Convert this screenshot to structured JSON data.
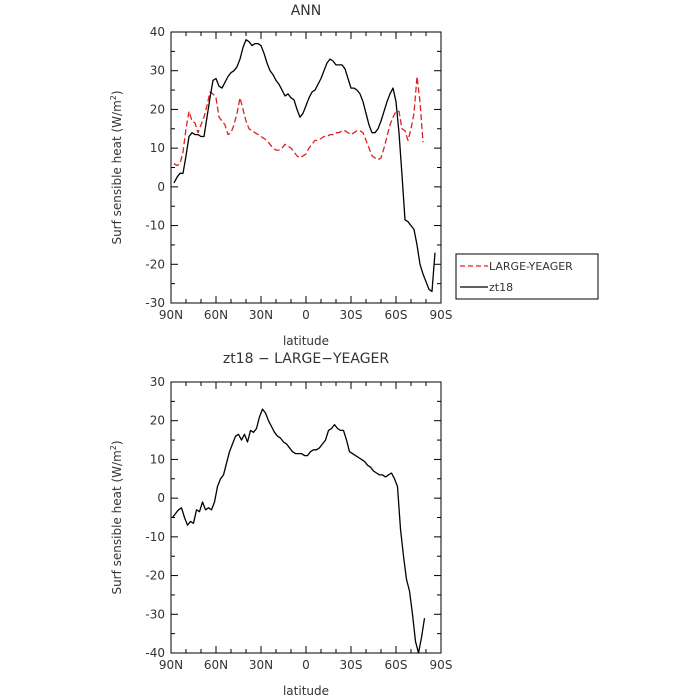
{
  "chart_data": [
    {
      "type": "line",
      "title": "ANN",
      "xlabel": "latitude",
      "ylabel": "Surf sensible heat (W/m",
      "ylabel_sup": "2",
      "ylabel_close": ")",
      "xlim": [
        90,
        -90
      ],
      "ylim": [
        -30,
        40
      ],
      "x_ticks": [
        90,
        60,
        30,
        0,
        -30,
        -60,
        -90
      ],
      "x_tick_labels": [
        "90N",
        "60N",
        "30N",
        "0",
        "30S",
        "60S",
        "90S"
      ],
      "y_ticks": [
        -30,
        -20,
        -10,
        0,
        10,
        20,
        30,
        40
      ],
      "y_tick_labels": [
        "-30",
        "-20",
        "-10",
        "0",
        "10",
        "20",
        "30",
        "40"
      ],
      "legend_position": "right",
      "series": [
        {
          "name": "LARGE-YEAGER",
          "color": "#e02020",
          "dash": "dashed",
          "x": [
            88,
            86,
            84,
            82,
            80,
            78,
            76,
            74,
            72,
            70,
            68,
            66,
            64,
            62,
            60,
            58,
            56,
            54,
            52,
            50,
            48,
            46,
            44,
            42,
            40,
            38,
            36,
            34,
            32,
            30,
            28,
            26,
            24,
            22,
            20,
            18,
            16,
            14,
            12,
            10,
            8,
            6,
            4,
            2,
            0,
            -2,
            -4,
            -6,
            -8,
            -10,
            -12,
            -14,
            -16,
            -18,
            -20,
            -22,
            -24,
            -26,
            -28,
            -30,
            -32,
            -34,
            -36,
            -38,
            -40,
            -42,
            -44,
            -46,
            -48,
            -50,
            -52,
            -54,
            -56,
            -58,
            -60,
            -62,
            -64,
            -66,
            -68,
            -70,
            -72,
            -74,
            -76,
            -78
          ],
          "y": [
            6,
            5.5,
            6,
            9,
            15,
            19.5,
            17,
            16.5,
            14,
            16,
            18,
            21,
            24.5,
            24,
            23,
            18,
            17,
            16,
            13.5,
            14,
            16,
            19,
            23,
            20,
            17,
            15,
            14.5,
            14,
            13.5,
            13,
            12.5,
            12,
            11,
            10,
            9.5,
            9.5,
            10,
            11,
            10.5,
            10,
            9,
            8,
            7.5,
            8,
            8.5,
            10,
            11,
            12,
            12,
            12.5,
            13,
            13,
            13.5,
            13.5,
            14,
            14,
            14.5,
            14.5,
            14,
            13.5,
            14,
            14.5,
            14.5,
            14,
            12,
            10,
            8,
            7.5,
            7,
            7.5,
            10,
            13,
            16,
            18,
            19.5,
            19.5,
            15,
            14.5,
            12,
            15,
            19,
            28.5,
            22,
            11.5
          ]
        },
        {
          "name": "zt18",
          "color": "#000000",
          "dash": "solid",
          "x": [
            88,
            86,
            84,
            82,
            80,
            78,
            76,
            74,
            72,
            70,
            68,
            66,
            64,
            62,
            60,
            58,
            56,
            54,
            52,
            50,
            48,
            46,
            44,
            42,
            40,
            38,
            36,
            34,
            32,
            30,
            28,
            26,
            24,
            22,
            20,
            18,
            16,
            14,
            12,
            10,
            8,
            6,
            4,
            2,
            0,
            -2,
            -4,
            -6,
            -8,
            -10,
            -12,
            -14,
            -16,
            -18,
            -20,
            -22,
            -24,
            -26,
            -28,
            -30,
            -32,
            -34,
            -36,
            -38,
            -40,
            -42,
            -44,
            -46,
            -48,
            -50,
            -52,
            -54,
            -56,
            -58,
            -60,
            -62,
            -64,
            -66,
            -68,
            -70,
            -72,
            -74,
            -76,
            -78,
            -80,
            -82,
            -84,
            -86
          ],
          "y": [
            1,
            2.5,
            3.5,
            3.5,
            8,
            13,
            14,
            13.5,
            13.5,
            13,
            13,
            18,
            23,
            27.5,
            28,
            26,
            25.5,
            27,
            28.5,
            29.5,
            30,
            31,
            33,
            36,
            38,
            37.5,
            36.5,
            37,
            37,
            36.5,
            34.5,
            32,
            30,
            29,
            27.5,
            26.5,
            25,
            23.5,
            24,
            23,
            22.5,
            20,
            18,
            19,
            21,
            23,
            24.5,
            25,
            26.5,
            28,
            30,
            32,
            33,
            32.5,
            31.5,
            31.5,
            31.5,
            30.5,
            28,
            25.5,
            25.5,
            25,
            24,
            22,
            19,
            16,
            14,
            14,
            15,
            17,
            19.5,
            22,
            24,
            25.5,
            22,
            14,
            3,
            -8.5,
            -9,
            -10,
            -11,
            -15,
            -20,
            -22.5,
            -24.5,
            -26.5,
            -27,
            -17
          ]
        }
      ]
    },
    {
      "type": "line",
      "title": "zt18 − LARGE−YEAGER",
      "xlabel": "latitude",
      "ylabel": "Surf sensible heat (W/m",
      "ylabel_sup": "2",
      "ylabel_close": ")",
      "xlim": [
        90,
        -90
      ],
      "ylim": [
        -40,
        30
      ],
      "x_ticks": [
        90,
        60,
        30,
        0,
        -30,
        -60,
        -90
      ],
      "x_tick_labels": [
        "90N",
        "60N",
        "30N",
        "0",
        "30S",
        "60S",
        "90S"
      ],
      "y_ticks": [
        -40,
        -30,
        -20,
        -10,
        0,
        10,
        20,
        30
      ],
      "y_tick_labels": [
        "-40",
        "-30",
        "-20",
        "-10",
        "0",
        "10",
        "20",
        "30"
      ],
      "series": [
        {
          "name": "",
          "color": "#000000",
          "dash": "solid",
          "x": [
            89,
            87,
            85,
            83,
            81,
            79,
            77,
            75,
            73,
            71,
            69,
            67,
            65,
            63,
            61,
            59,
            57,
            55,
            53,
            51,
            49,
            47,
            45,
            43,
            41,
            39,
            37,
            35,
            33,
            31,
            29,
            27,
            25,
            23,
            21,
            19,
            17,
            15,
            13,
            11,
            9,
            7,
            5,
            3,
            1,
            -1,
            -3,
            -5,
            -7,
            -9,
            -11,
            -13,
            -15,
            -17,
            -19,
            -21,
            -23,
            -25,
            -27,
            -29,
            -31,
            -33,
            -35,
            -37,
            -39,
            -41,
            -43,
            -45,
            -47,
            -49,
            -51,
            -53,
            -55,
            -57,
            -59,
            -61,
            -63,
            -65,
            -67,
            -69,
            -71,
            -73,
            -75,
            -77,
            -79
          ],
          "y": [
            -5,
            -4,
            -3,
            -2.5,
            -5,
            -7,
            -6,
            -6.5,
            -3,
            -3.5,
            -1,
            -3,
            -2.5,
            -3,
            -1,
            3,
            5,
            6,
            9,
            12,
            14,
            16,
            16.5,
            15,
            16.5,
            14.5,
            17.5,
            17,
            18,
            21,
            23,
            22,
            20,
            18.5,
            17,
            16,
            15.5,
            14.5,
            14,
            13,
            12,
            11.5,
            11.5,
            11.5,
            11,
            11,
            12,
            12.5,
            12.5,
            13,
            14,
            15,
            17.5,
            18,
            19,
            18,
            17.5,
            17.5,
            15,
            12,
            11.5,
            11,
            10.5,
            10,
            9.5,
            8.5,
            8,
            7,
            6.5,
            6,
            6,
            5.5,
            6,
            6.5,
            5,
            3,
            -8,
            -15,
            -21,
            -24,
            -30,
            -37,
            -40,
            -36,
            -31
          ]
        }
      ]
    }
  ]
}
